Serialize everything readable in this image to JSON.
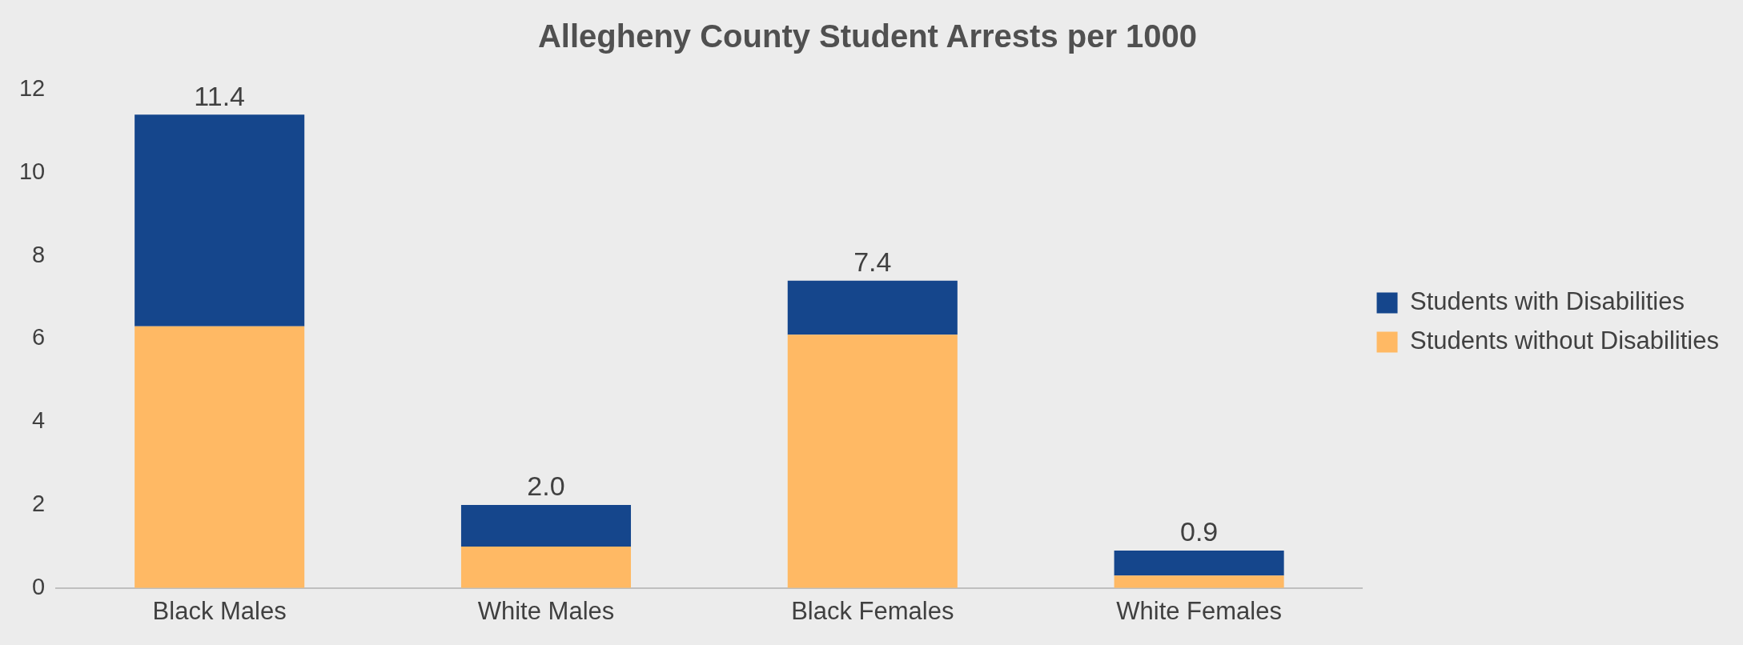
{
  "chart_data": {
    "type": "bar",
    "title": "Allegheny County Student Arrests per 1000",
    "stacked": true,
    "categories": [
      "Black Males",
      "White Males",
      "Black Females",
      "White Females"
    ],
    "series": [
      {
        "name": "Students without Disabilities",
        "color": "#ffb964",
        "values": [
          6.3,
          1.0,
          6.1,
          0.3
        ]
      },
      {
        "name": "Students with Disabilities",
        "color": "#15468c",
        "values": [
          5.1,
          1.0,
          1.3,
          0.6
        ]
      }
    ],
    "totals": [
      "11.4",
      "2.0",
      "7.4",
      "0.9"
    ],
    "ylim": [
      0,
      12
    ],
    "yticks": [
      0,
      2,
      4,
      6,
      8,
      10,
      12
    ],
    "grid": false,
    "legend": "right"
  }
}
